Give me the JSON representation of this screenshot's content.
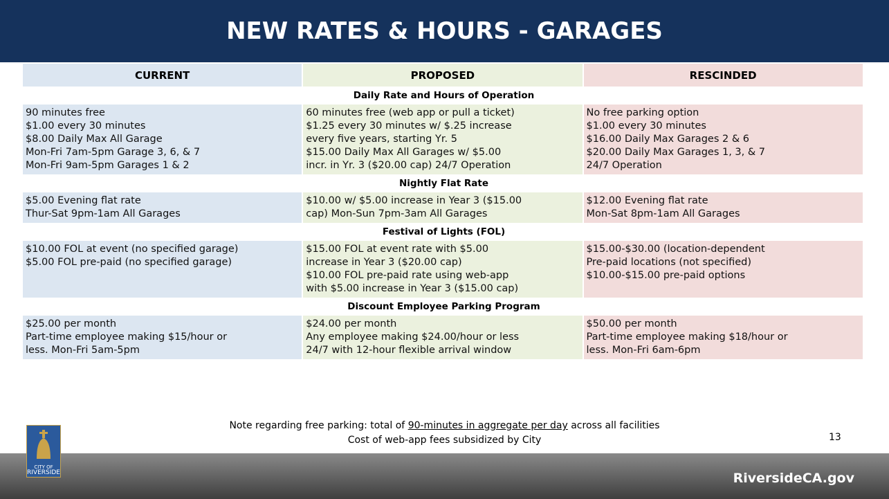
{
  "header": {
    "title": "NEW RATES & HOURS - GARAGES"
  },
  "table": {
    "columns": [
      "CURRENT",
      "PROPOSED",
      "RESCINDED"
    ],
    "sections": [
      {
        "title": "Daily Rate and Hours of Operation",
        "cells": [
          [
            "90 minutes free",
            "$1.00 every 30 minutes",
            "$8.00 Daily Max All Garage",
            "Mon-Fri 7am-5pm Garage 3, 6, & 7",
            "Mon-Fri 9am-5pm Garages 1 & 2"
          ],
          [
            "60 minutes free (web app or pull a ticket)",
            "$1.25 every 30 minutes w/ $.25 increase",
            "every five years, starting Yr. 5",
            "$15.00 Daily Max All Garages w/ $5.00",
            "incr. in Yr. 3 ($20.00 cap) 24/7 Operation"
          ],
          [
            "No free parking option",
            "$1.00 every 30 minutes",
            "$16.00 Daily Max Garages 2 & 6",
            "$20.00 Daily Max Garages 1, 3, & 7",
            "24/7 Operation"
          ]
        ]
      },
      {
        "title": "Nightly Flat Rate",
        "cells": [
          [
            "$5.00 Evening flat rate",
            "Thur-Sat 9pm-1am All Garages"
          ],
          [
            "$10.00 w/ $5.00 increase in Year 3 ($15.00",
            "cap) Mon-Sun 7pm-3am All Garages"
          ],
          [
            "$12.00 Evening flat rate",
            "Mon-Sat 8pm-1am All Garages"
          ]
        ]
      },
      {
        "title": "Festival of Lights (FOL)",
        "cells": [
          [
            "$10.00 FOL at event (no specified garage)",
            "$5.00 FOL pre-paid (no specified garage)"
          ],
          [
            "$15.00 FOL at event rate with $5.00",
            "increase in Year 3 ($20.00 cap)",
            "$10.00 FOL pre-paid rate using web-app",
            "with $5.00 increase in Year 3 ($15.00 cap)"
          ],
          [
            "$15.00-$30.00 (location-dependent",
            "Pre-paid locations (not specified)",
            "$10.00-$15.00 pre-paid options"
          ]
        ]
      },
      {
        "title": "Discount Employee Parking Program",
        "cells": [
          [
            "$25.00 per month",
            "Part-time employee making $15/hour or",
            "less. Mon-Fri 5am-5pm"
          ],
          [
            "$24.00 per month",
            "Any employee making $24.00/hour or less",
            "24/7 with 12-hour flexible arrival window"
          ],
          [
            "$50.00 per month",
            "Part-time employee making $18/hour or",
            "less. Mon-Fri 6am-6pm"
          ]
        ]
      }
    ]
  },
  "notes": [
    {
      "before": "Note regarding free parking: total of ",
      "underlined": "90-minutes in aggregate per day",
      "after": " across all facilities"
    },
    "Cost of web-app fees subsidized by City"
  ],
  "page_number": "13",
  "footer": {
    "logo": [
      "CITY OF",
      "RIVERSIDE"
    ],
    "url": "RiversideCA.gov"
  }
}
